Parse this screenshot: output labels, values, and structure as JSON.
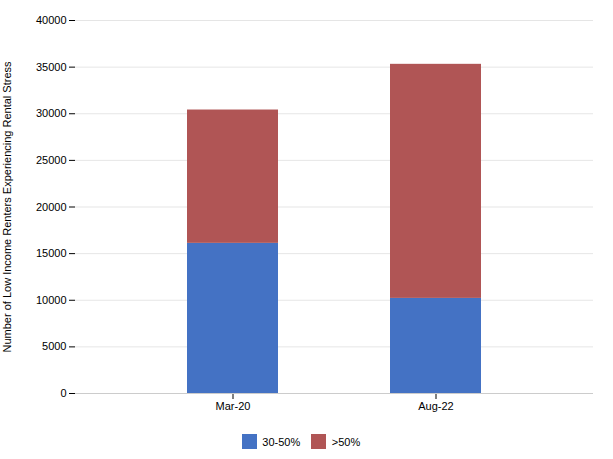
{
  "chart_data": {
    "type": "bar",
    "stacked": true,
    "categories": [
      "Mar-20",
      "Aug-22"
    ],
    "series": [
      {
        "name": "30-50%",
        "color": "#4472C4",
        "values": [
          16100,
          10200
        ]
      },
      {
        "name": ">50%",
        "color": "#B05555",
        "values": [
          14300,
          25100
        ]
      }
    ],
    "ylabel": "Number of Low Income Renters Experiencing Rental Stress",
    "ylim": [
      0,
      40000
    ],
    "yticks": [
      0,
      5000,
      10000,
      15000,
      20000,
      25000,
      30000,
      35000,
      40000
    ],
    "grid": true,
    "legend": "bottom"
  }
}
